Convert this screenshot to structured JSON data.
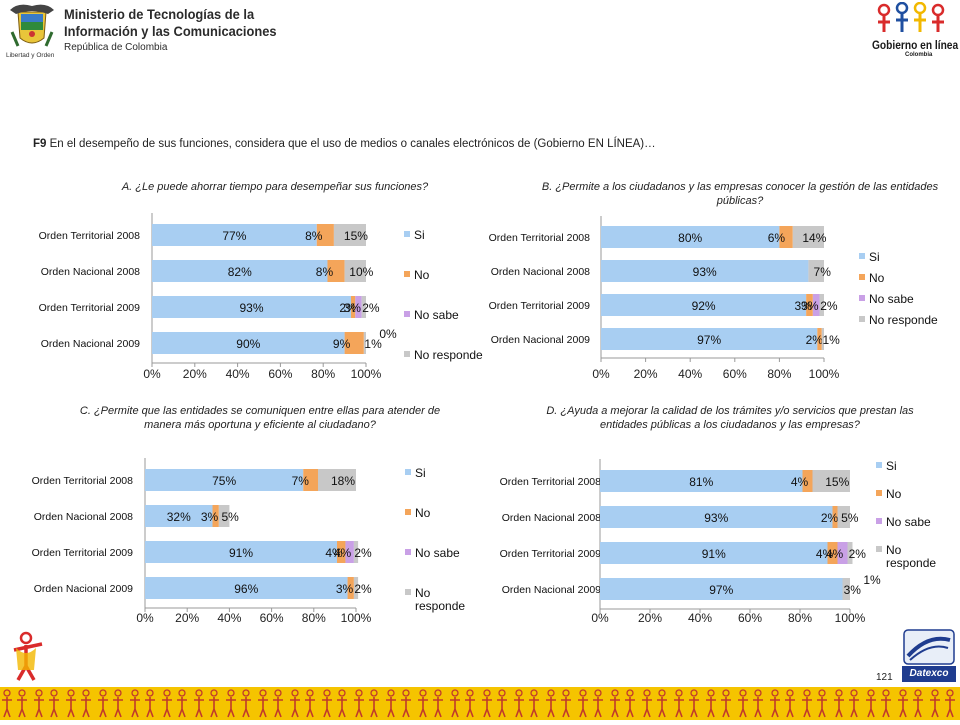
{
  "header": {
    "ministry_line1": "Ministerio de Tecnologías de la",
    "ministry_line2": "Información y las Comunicaciones",
    "ministry_line3": "República de Colombia",
    "motto": "Libertad y Orden",
    "brand": "Gobierno en línea",
    "brand_sub": "Colombia"
  },
  "question": {
    "code": "F9",
    "text": "En el desempeño de sus funciones, considera que el uso de medios o canales electrónicos de (Gobierno EN LÍNEA)…"
  },
  "colors": {
    "si": "#a8cef2",
    "no": "#f4a55a",
    "no_sabe": "#c9a0e6",
    "no_responde": "#c8c8c8"
  },
  "chart_data": [
    {
      "type": "bar",
      "orientation": "horizontal",
      "stacked": true,
      "title": "A. ¿Le puede ahorrar tiempo para desempeñar sus funciones?",
      "categories": [
        "Orden Territorial 2008",
        "Orden Nacional 2008",
        "Orden Territorial 2009",
        "Orden Nacional 2009"
      ],
      "series": [
        {
          "name": "Si",
          "values": [
            77,
            82,
            93,
            90
          ]
        },
        {
          "name": "No",
          "values": [
            8,
            8,
            2,
            9
          ]
        },
        {
          "name": "No sabe",
          "values": [
            0,
            0,
            3,
            0
          ]
        },
        {
          "name": "No responde",
          "values": [
            15,
            10,
            2,
            1
          ]
        }
      ],
      "labels": [
        [
          "77%",
          "8%",
          "",
          "15%"
        ],
        [
          "82%",
          "8%",
          "",
          "10%"
        ],
        [
          "93%",
          "2%",
          "3%",
          "2%"
        ],
        [
          "90%",
          "9%",
          "",
          "1%"
        ]
      ],
      "extra_labels": [
        "",
        "",
        "",
        "0%"
      ],
      "xticks": [
        "0%",
        "20%",
        "40%",
        "60%",
        "80%",
        "100%"
      ],
      "xlim": [
        0,
        100
      ],
      "legend_position": "right"
    },
    {
      "type": "bar",
      "orientation": "horizontal",
      "stacked": true,
      "title": "B. ¿Permite a los ciudadanos y las empresas conocer la gestión de las entidades públicas?",
      "categories": [
        "Orden Territorial 2008",
        "Orden Nacional 2008",
        "Orden Territorial 2009",
        "Orden Nacional 2009"
      ],
      "series": [
        {
          "name": "Si",
          "values": [
            80,
            93,
            92,
            97
          ]
        },
        {
          "name": "No",
          "values": [
            6,
            0,
            3,
            2
          ]
        },
        {
          "name": "No sabe",
          "values": [
            0,
            0,
            3,
            0
          ]
        },
        {
          "name": "No responde",
          "values": [
            14,
            7,
            2,
            1
          ]
        }
      ],
      "labels": [
        [
          "80%",
          "6%",
          "",
          "14%"
        ],
        [
          "93%",
          "",
          "",
          "7%"
        ],
        [
          "92%",
          "3%",
          "3%",
          "2%"
        ],
        [
          "97%",
          "2%",
          "",
          "1%"
        ]
      ],
      "extra_labels": [
        "",
        "",
        "",
        ""
      ],
      "xticks": [
        "0%",
        "20%",
        "40%",
        "60%",
        "80%",
        "100%"
      ],
      "xlim": [
        0,
        100
      ],
      "legend_position": "right"
    },
    {
      "type": "bar",
      "orientation": "horizontal",
      "stacked": true,
      "title": "C. ¿Permite que las entidades se comuniquen entre ellas para atender de manera más oportuna y eficiente al ciudadano?",
      "categories": [
        "Orden Territorial 2008",
        "Orden Nacional 2008",
        "Orden Territorial 2009",
        "Orden Nacional 2009"
      ],
      "series": [
        {
          "name": "Si",
          "values": [
            75,
            32,
            91,
            96
          ]
        },
        {
          "name": "No",
          "values": [
            7,
            3,
            4,
            3
          ]
        },
        {
          "name": "No sabe",
          "values": [
            0,
            0,
            4,
            0
          ]
        },
        {
          "name": "No responde",
          "values": [
            18,
            5,
            2,
            2
          ]
        }
      ],
      "labels": [
        [
          "75%",
          "7%",
          "",
          "18%"
        ],
        [
          "32%",
          "3%",
          "",
          "5%"
        ],
        [
          "91%",
          "4%",
          "4%",
          "2%"
        ],
        [
          "96%",
          "3%",
          "",
          "2%"
        ]
      ],
      "extra_labels": [
        "",
        "",
        "",
        ""
      ],
      "xticks": [
        "0%",
        "20%",
        "40%",
        "60%",
        "80%",
        "100%"
      ],
      "xlim": [
        0,
        100
      ],
      "legend_position": "right"
    },
    {
      "type": "bar",
      "orientation": "horizontal",
      "stacked": true,
      "title": "D. ¿Ayuda a mejorar la calidad de los trámites y/o servicios que prestan las entidades públicas a los ciudadanos y las empresas?",
      "categories": [
        "Orden Territorial 2008",
        "Orden Nacional 2008",
        "Orden Territorial 2009",
        "Orden Nacional 2009"
      ],
      "series": [
        {
          "name": "Si",
          "values": [
            81,
            93,
            91,
            97
          ]
        },
        {
          "name": "No",
          "values": [
            4,
            2,
            4,
            0
          ]
        },
        {
          "name": "No sabe",
          "values": [
            0,
            0,
            4,
            0
          ]
        },
        {
          "name": "No responde",
          "values": [
            15,
            5,
            2,
            3
          ]
        }
      ],
      "labels": [
        [
          "81%",
          "4%",
          "",
          "15%"
        ],
        [
          "93%",
          "2%",
          "",
          "5%"
        ],
        [
          "91%",
          "4%",
          "4%",
          "2%"
        ],
        [
          "97%",
          "",
          "",
          "3%"
        ]
      ],
      "extra_labels": [
        "",
        "",
        "",
        "1%"
      ],
      "xticks": [
        "0%",
        "20%",
        "40%",
        "60%",
        "80%",
        "100%"
      ],
      "xlim": [
        0,
        100
      ],
      "legend_position": "right"
    }
  ],
  "footer": {
    "page_number": "121",
    "company": "Datexco"
  }
}
